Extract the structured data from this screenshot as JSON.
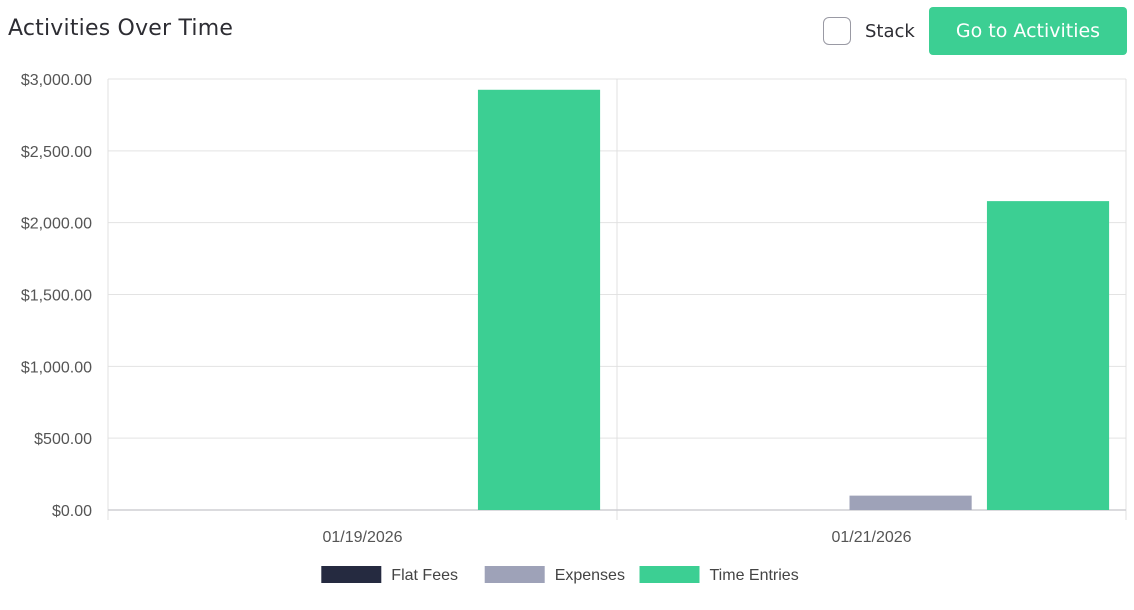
{
  "header": {
    "title": "Activities Over Time",
    "stack_label": "Stack",
    "stack_checked": false,
    "goto_button": "Go to Activities"
  },
  "colors": {
    "Flat Fees": "#252a40",
    "Expenses": "#9ea2b8",
    "Time Entries": "#3ccf93",
    "accent": "#3ccf93"
  },
  "chart_data": {
    "type": "bar",
    "categories": [
      "01/19/2026",
      "01/21/2026"
    ],
    "series": [
      {
        "name": "Flat Fees",
        "values": [
          0,
          0
        ]
      },
      {
        "name": "Expenses",
        "values": [
          0,
          100
        ]
      },
      {
        "name": "Time Entries",
        "values": [
          2925,
          2150
        ]
      }
    ],
    "ylim": [
      0,
      3000
    ],
    "yticks": [
      0,
      500,
      1000,
      1500,
      2000,
      2500,
      3000
    ],
    "ytick_labels": [
      "$0.00",
      "$500.00",
      "$1,000.00",
      "$1,500.00",
      "$2,000.00",
      "$2,500.00",
      "$3,000.00"
    ],
    "grid": true,
    "legend_position": "bottom-center",
    "stacked": false
  }
}
